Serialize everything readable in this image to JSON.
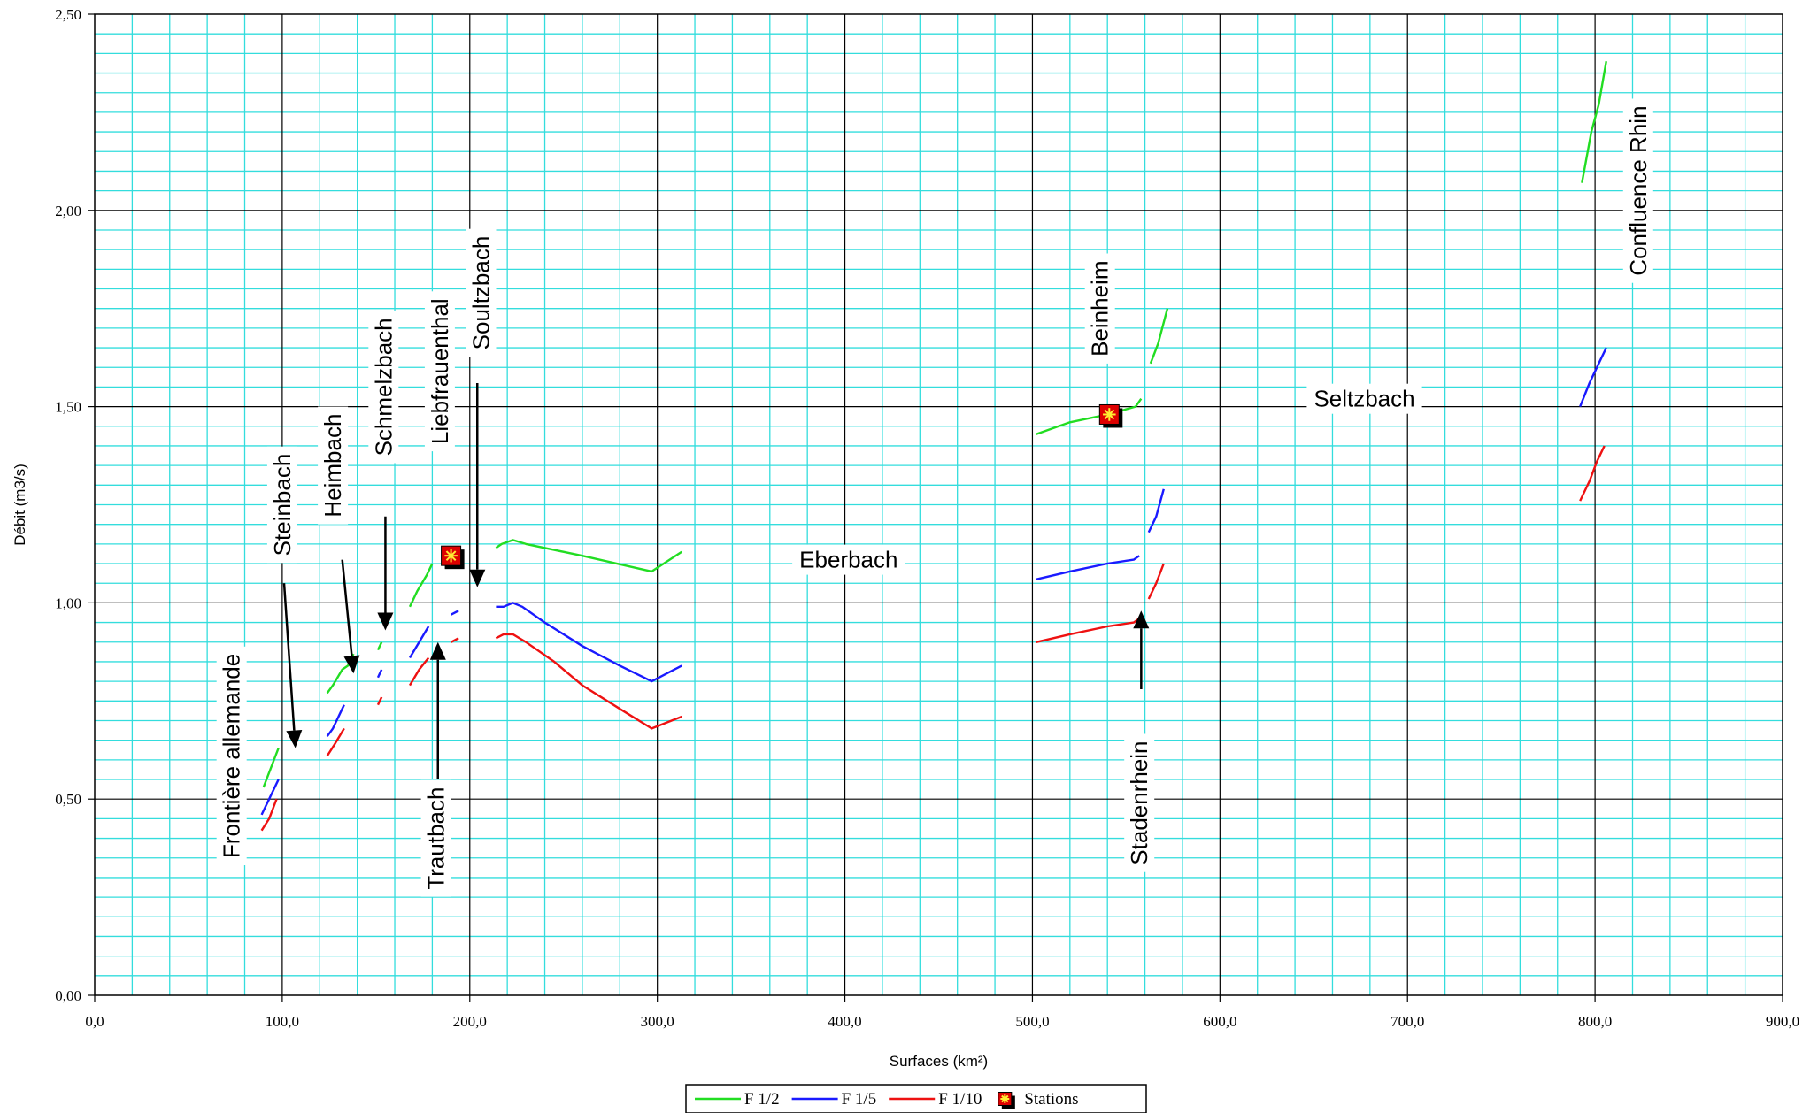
{
  "chart_data": {
    "type": "line",
    "xlabel": "Surfaces (km²)",
    "ylabel": "Débit (m3/s)",
    "xlim": [
      0,
      900
    ],
    "ylim": [
      0,
      2.5
    ],
    "x_ticks": [
      0,
      100,
      200,
      300,
      400,
      500,
      600,
      700,
      800,
      900
    ],
    "x_tick_labels": [
      "0,0",
      "100,0",
      "200,0",
      "300,0",
      "400,0",
      "500,0",
      "600,0",
      "700,0",
      "800,0",
      "900,0"
    ],
    "y_ticks": [
      0,
      0.5,
      1,
      1.5,
      2,
      2.5
    ],
    "y_tick_labels": [
      "0,00",
      "0,50",
      "1,00",
      "1,50",
      "2,00",
      "2,50"
    ],
    "grid": true,
    "legend_position": "bottom-center",
    "series": [
      {
        "name": "F 1/2",
        "color": "#22dd22",
        "segments": [
          [
            [
              90,
              0.53
            ],
            [
              98,
              0.63
            ]
          ],
          [
            [
              124,
              0.77
            ],
            [
              127,
              0.79
            ],
            [
              132,
              0.83
            ],
            [
              135,
              0.84
            ],
            [
              138,
              0.87
            ]
          ],
          [
            [
              151,
              0.88
            ],
            [
              153,
              0.9
            ]
          ],
          [
            [
              168,
              0.99
            ],
            [
              172,
              1.03
            ],
            [
              177,
              1.07
            ],
            [
              180,
              1.1
            ]
          ],
          [
            [
              191,
              1.11
            ],
            [
              194,
              1.13
            ]
          ],
          [
            [
              214,
              1.14
            ],
            [
              217,
              1.15
            ],
            [
              223,
              1.16
            ],
            [
              230,
              1.15
            ],
            [
              260,
              1.12
            ],
            [
              297,
              1.08
            ],
            [
              313,
              1.13
            ]
          ],
          [
            [
              502,
              1.43
            ],
            [
              520,
              1.46
            ],
            [
              540,
              1.48
            ],
            [
              555,
              1.5
            ],
            [
              558,
              1.52
            ]
          ],
          [
            [
              563,
              1.61
            ],
            [
              567,
              1.66
            ],
            [
              572,
              1.75
            ]
          ],
          [
            [
              793,
              2.07
            ],
            [
              798,
              2.2
            ],
            [
              802,
              2.27
            ],
            [
              806,
              2.38
            ]
          ]
        ]
      },
      {
        "name": "F 1/5",
        "color": "#1a1aff",
        "segments": [
          [
            [
              89,
              0.46
            ],
            [
              93,
              0.5
            ],
            [
              98,
              0.55
            ]
          ],
          [
            [
              124,
              0.66
            ],
            [
              127,
              0.68
            ],
            [
              133,
              0.74
            ]
          ],
          [
            [
              151,
              0.81
            ],
            [
              153,
              0.83
            ]
          ],
          [
            [
              168,
              0.86
            ],
            [
              173,
              0.9
            ],
            [
              178,
              0.94
            ]
          ],
          [
            [
              190,
              0.97
            ],
            [
              194,
              0.98
            ]
          ],
          [
            [
              214,
              0.99
            ],
            [
              218,
              0.99
            ],
            [
              223,
              1.0
            ],
            [
              228,
              0.99
            ],
            [
              240,
              0.95
            ],
            [
              260,
              0.89
            ],
            [
              280,
              0.84
            ],
            [
              297,
              0.8
            ],
            [
              313,
              0.84
            ]
          ],
          [
            [
              502,
              1.06
            ],
            [
              520,
              1.08
            ],
            [
              540,
              1.1
            ],
            [
              554,
              1.11
            ],
            [
              557,
              1.12
            ]
          ],
          [
            [
              562,
              1.18
            ],
            [
              566,
              1.22
            ],
            [
              570,
              1.29
            ]
          ],
          [
            [
              792,
              1.5
            ],
            [
              797,
              1.56
            ],
            [
              802,
              1.61
            ],
            [
              806,
              1.65
            ]
          ]
        ]
      },
      {
        "name": "F 1/10",
        "color": "#ee1111",
        "segments": [
          [
            [
              89,
              0.42
            ],
            [
              93,
              0.45
            ],
            [
              97,
              0.5
            ]
          ],
          [
            [
              124,
              0.61
            ],
            [
              128,
              0.64
            ],
            [
              133,
              0.68
            ]
          ],
          [
            [
              151,
              0.74
            ],
            [
              153,
              0.76
            ]
          ],
          [
            [
              168,
              0.79
            ],
            [
              173,
              0.83
            ],
            [
              178,
              0.86
            ]
          ],
          [
            [
              190,
              0.9
            ],
            [
              194,
              0.91
            ]
          ],
          [
            [
              214,
              0.91
            ],
            [
              218,
              0.92
            ],
            [
              223,
              0.92
            ],
            [
              230,
              0.9
            ],
            [
              245,
              0.85
            ],
            [
              260,
              0.79
            ],
            [
              280,
              0.73
            ],
            [
              297,
              0.68
            ],
            [
              313,
              0.71
            ]
          ],
          [
            [
              502,
              0.9
            ],
            [
              520,
              0.92
            ],
            [
              540,
              0.94
            ],
            [
              554,
              0.95
            ],
            [
              557,
              0.96
            ]
          ],
          [
            [
              562,
              1.01
            ],
            [
              566,
              1.05
            ],
            [
              570,
              1.1
            ]
          ],
          [
            [
              792,
              1.26
            ],
            [
              797,
              1.31
            ],
            [
              801,
              1.36
            ],
            [
              805,
              1.4
            ]
          ]
        ]
      }
    ],
    "stations": {
      "name": "Stations",
      "color": "#dd0000",
      "points": [
        {
          "x": 190,
          "y": 1.12
        },
        {
          "x": 541,
          "y": 1.48
        }
      ]
    },
    "annotations": [
      {
        "text": "Frontière allemande",
        "x": 73,
        "y": 0.61,
        "rotate": -90
      },
      {
        "text": "Steinbach",
        "x": 100,
        "y": 1.25,
        "rotate": -90
      },
      {
        "text": "Heimbach",
        "x": 127,
        "y": 1.35,
        "rotate": -90
      },
      {
        "text": "Schmelzbach",
        "x": 154,
        "y": 1.55,
        "rotate": -90
      },
      {
        "text": "Liebfrauenthal",
        "x": 184,
        "y": 1.59,
        "rotate": -90
      },
      {
        "text": "Soultzbach",
        "x": 206,
        "y": 1.79,
        "rotate": -90
      },
      {
        "text": "Trautbach",
        "x": 182,
        "y": 0.4,
        "rotate": -90
      },
      {
        "text": "Eberbach",
        "x": 402,
        "y": 1.11,
        "rotate": 0
      },
      {
        "text": "Beinheim",
        "x": 536,
        "y": 1.75,
        "rotate": -90
      },
      {
        "text": "Stadenrhein",
        "x": 557,
        "y": 0.49,
        "rotate": -90
      },
      {
        "text": "Seltzbach",
        "x": 677,
        "y": 1.52,
        "rotate": 0
      },
      {
        "text": "Confluence Rhin",
        "x": 823,
        "y": 2.05,
        "rotate": -90
      }
    ],
    "arrows": [
      {
        "from": [
          101,
          1.05
        ],
        "to": [
          107,
          0.63
        ]
      },
      {
        "from": [
          132,
          1.11
        ],
        "to": [
          138,
          0.82
        ]
      },
      {
        "from": [
          155,
          1.22
        ],
        "to": [
          155,
          0.93
        ]
      },
      {
        "from": [
          183,
          0.55
        ],
        "to": [
          183,
          0.9
        ]
      },
      {
        "from": [
          204,
          1.56
        ],
        "to": [
          204,
          1.04
        ]
      },
      {
        "from": [
          558,
          0.78
        ],
        "to": [
          558,
          0.98
        ]
      }
    ]
  }
}
